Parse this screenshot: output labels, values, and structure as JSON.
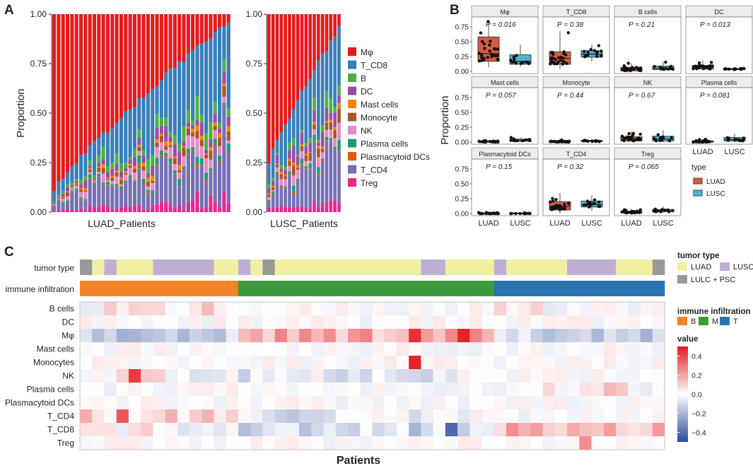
{
  "panel_labels": {
    "a": "A",
    "b": "B",
    "c": "C"
  },
  "colors": {
    "cell_types": {
      "Mφ": "#e41a1c",
      "T_CD8": "#377eb8",
      "B": "#4daf4a",
      "DC": "#984ea3",
      "Mast cells": "#ff7f00",
      "Monocyte": "#a65628",
      "NK": "#e78ac3",
      "Plasma cells": "#1b9e77",
      "Plasmacytoid DCs": "#d95f02",
      "T_CD4": "#7570b3",
      "Treg": "#e7298a"
    },
    "luad": "#d95a3f",
    "lusc": "#4eb3d3",
    "tumor": {
      "LUAD": "#f2eea2",
      "LUSC": "#bfaed4",
      "LULC + PSC": "#999999"
    },
    "infil": {
      "B": "#f08426",
      "M": "#3c9b3c",
      "T": "#2a74b0"
    },
    "heat_low": "#2b4c9b",
    "heat_mid": "#ffffff",
    "heat_high": "#e31a1c"
  },
  "chart_data": [
    {
      "id": "A",
      "type": "bar",
      "stacked": true,
      "ylabel": "Proportion",
      "yticks": [
        "0.00",
        "0.25",
        "0.50",
        "0.75",
        "1.00"
      ],
      "ylim": [
        0,
        1
      ],
      "legend": [
        "Mφ",
        "T_CD8",
        "B",
        "DC",
        "Mast cells",
        "Monocyte",
        "NK",
        "Plasma cells",
        "Plasmacytoid DCs",
        "T_CD4",
        "Treg"
      ],
      "panels": [
        {
          "xlabel": "LUAD_Patients",
          "n_patients": 40,
          "top_first": 0.12,
          "top_last": 0.97
        },
        {
          "xlabel": "LUSC_Patients",
          "n_patients": 18,
          "top_first": 0.26,
          "top_last": 0.93
        }
      ]
    },
    {
      "id": "B",
      "type": "box",
      "ylabel": "Proportion",
      "yticks": [
        "0.00",
        "0.25",
        "0.50",
        "0.75"
      ],
      "ylim": [
        0,
        0.88
      ],
      "groups": [
        "LUAD",
        "LUSC"
      ],
      "legend_title": "type",
      "facets": [
        {
          "name": "Mφ",
          "p": "P = 0.016",
          "luad": [
            0.07,
            0.17,
            0.3,
            0.58,
            0.85
          ],
          "lusc": [
            0.08,
            0.12,
            0.17,
            0.28,
            0.45
          ]
        },
        {
          "name": "T_CD8",
          "p": "P = 0.38",
          "luad": [
            0.04,
            0.12,
            0.22,
            0.33,
            0.68
          ],
          "lusc": [
            0.17,
            0.24,
            0.29,
            0.35,
            0.45
          ]
        },
        {
          "name": "B cells",
          "p": "P = 0.21",
          "luad": [
            0.0,
            0.01,
            0.04,
            0.07,
            0.14
          ],
          "lusc": [
            0.0,
            0.03,
            0.05,
            0.09,
            0.16
          ]
        },
        {
          "name": "DC",
          "p": "P = 0.013",
          "luad": [
            0.01,
            0.04,
            0.07,
            0.1,
            0.18
          ],
          "lusc": [
            0.01,
            0.03,
            0.04,
            0.05,
            0.07
          ]
        },
        {
          "name": "Mast cells",
          "p": "P = 0.057",
          "luad": [
            0.0,
            0.0,
            0.01,
            0.02,
            0.03
          ],
          "lusc": [
            0.0,
            0.02,
            0.03,
            0.05,
            0.08
          ]
        },
        {
          "name": "Monocyte",
          "p": "P = 0.44",
          "luad": [
            0.0,
            0.0,
            0.01,
            0.02,
            0.04
          ],
          "lusc": [
            0.0,
            0.01,
            0.02,
            0.03,
            0.05
          ]
        },
        {
          "name": "NK",
          "p": "P = 0.67",
          "luad": [
            0.0,
            0.02,
            0.05,
            0.09,
            0.18
          ],
          "lusc": [
            0.0,
            0.02,
            0.05,
            0.1,
            0.2
          ]
        },
        {
          "name": "Plasma cells",
          "p": "P = 0.081",
          "luad": [
            0.0,
            0.0,
            0.01,
            0.02,
            0.05
          ],
          "lusc": [
            0.0,
            0.02,
            0.04,
            0.08,
            0.14
          ]
        },
        {
          "name": "Plasmacytoid DCs",
          "p": "P = 0.15",
          "luad": [
            0.0,
            0.0,
            0.0,
            0.01,
            0.02
          ],
          "lusc": [
            0.0,
            0.0,
            0.0,
            0.01,
            0.02
          ]
        },
        {
          "name": "T_CD4",
          "p": "P = 0.32",
          "luad": [
            0.0,
            0.06,
            0.12,
            0.2,
            0.35
          ],
          "lusc": [
            0.05,
            0.11,
            0.15,
            0.21,
            0.3
          ]
        },
        {
          "name": "Treg",
          "p": "P = 0.065",
          "luad": [
            0.0,
            0.01,
            0.02,
            0.04,
            0.08
          ],
          "lusc": [
            0.01,
            0.03,
            0.05,
            0.07,
            0.12
          ]
        }
      ]
    },
    {
      "id": "C",
      "type": "heatmap",
      "xlabel": "Patients",
      "n_cols": 48,
      "rows": [
        "B cells",
        "DC",
        "Mφ",
        "Mast cells",
        "Monocytes",
        "NK",
        "Plasma cells",
        "Plasmacytoid DCs",
        "T_CD4",
        "T_CD8",
        "Treg"
      ],
      "annotation_rows": [
        "tumor type",
        "immune infiltration"
      ],
      "tumor_segments": [
        [
          "LULC + PSC",
          1
        ],
        [
          "LUAD",
          1
        ],
        [
          "LUSC",
          1
        ],
        [
          "LUAD",
          3
        ],
        [
          "LUSC",
          5
        ],
        [
          "LUAD",
          2
        ],
        [
          "LUSC",
          1
        ],
        [
          "LUAD",
          1
        ],
        [
          "LULC + PSC",
          1
        ],
        [
          "LUAD",
          12
        ],
        [
          "LUSC",
          2
        ],
        [
          "LUAD",
          4
        ],
        [
          "LUSC",
          1
        ],
        [
          "LUAD",
          5
        ],
        [
          "LUSC",
          4
        ],
        [
          "LUAD",
          3
        ],
        [
          "LULC + PSC",
          1
        ]
      ],
      "infil_segments": [
        [
          "B",
          13
        ],
        [
          "M",
          21
        ],
        [
          "T",
          14
        ]
      ],
      "legend_tumor_title": "tumor type",
      "legend_tumor": [
        "LUAD",
        "LUSC",
        "LULC + PSC"
      ],
      "legend_infil_title": "immune infiltration",
      "legend_infil": [
        "B",
        "M",
        "T"
      ],
      "legend_value_title": "value",
      "value_ticks": [
        "0.4",
        "0.2",
        "0.0",
        "−0.2",
        "−0.4"
      ],
      "value_range": [
        -0.5,
        0.5
      ]
    }
  ]
}
